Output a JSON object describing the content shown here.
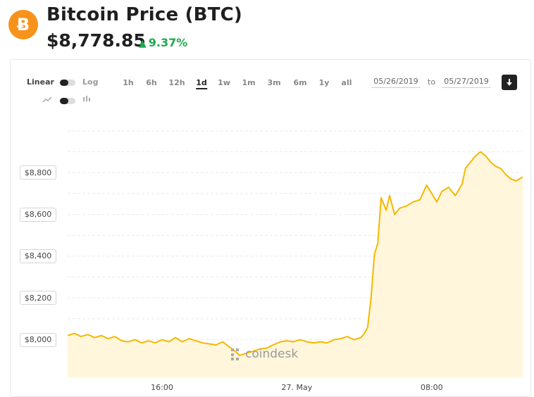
{
  "header": {
    "logo_symbol": "Ƀ",
    "title": "Bitcoin Price (BTC)",
    "price": "$8,778.85",
    "change_arrow": "▲",
    "change": "9.37%",
    "change_color": "#1fa84f",
    "logo_color": "#f7931a"
  },
  "controls": {
    "scale_linear": "Linear",
    "scale_log": "Log",
    "line_icon": "line-chart-icon",
    "candle_icon": "candlestick-icon",
    "ranges": [
      "1h",
      "6h",
      "12h",
      "1d",
      "1w",
      "1m",
      "3m",
      "6m",
      "1y",
      "all"
    ],
    "active_range": "1d",
    "date_from": "05/26/2019",
    "date_to_label": "to",
    "date_to": "05/27/2019",
    "download_icon": "download-icon"
  },
  "watermark": "coindesk",
  "chart_data": {
    "type": "area",
    "line_color": "#f5b800",
    "fill_color": "#fff6dc",
    "grid": true,
    "y_ticks": [
      "$8,000",
      "$8,200",
      "$8,400",
      "$8,600",
      "$8,800"
    ],
    "y_tick_values": [
      8000,
      8200,
      8400,
      8600,
      8800
    ],
    "x_ticks": [
      "16:00",
      "27. May",
      "08:00"
    ],
    "x_tick_hours": [
      16,
      24,
      32
    ],
    "x_start_hour": 10.4,
    "x_end_hour": 37.4,
    "ylim": [
      7820,
      9020
    ],
    "series": [
      {
        "points": [
          [
            10.4,
            8020
          ],
          [
            10.8,
            8030
          ],
          [
            11.2,
            8015
          ],
          [
            11.6,
            8025
          ],
          [
            12.0,
            8010
          ],
          [
            12.4,
            8020
          ],
          [
            12.8,
            8005
          ],
          [
            13.2,
            8015
          ],
          [
            13.6,
            7995
          ],
          [
            14.0,
            7990
          ],
          [
            14.4,
            8000
          ],
          [
            14.8,
            7985
          ],
          [
            15.2,
            7995
          ],
          [
            15.6,
            7985
          ],
          [
            16.0,
            8000
          ],
          [
            16.4,
            7990
          ],
          [
            16.8,
            8010
          ],
          [
            17.2,
            7990
          ],
          [
            17.6,
            8005
          ],
          [
            18.0,
            7995
          ],
          [
            18.4,
            7985
          ],
          [
            18.8,
            7980
          ],
          [
            19.2,
            7975
          ],
          [
            19.6,
            7990
          ],
          [
            20.0,
            7965
          ],
          [
            20.4,
            7940
          ],
          [
            20.6,
            7925
          ],
          [
            21.0,
            7935
          ],
          [
            21.4,
            7945
          ],
          [
            21.8,
            7955
          ],
          [
            22.2,
            7960
          ],
          [
            22.6,
            7975
          ],
          [
            23.0,
            7990
          ],
          [
            23.4,
            7995
          ],
          [
            23.8,
            7990
          ],
          [
            24.2,
            8000
          ],
          [
            24.6,
            7990
          ],
          [
            25.0,
            7985
          ],
          [
            25.4,
            7990
          ],
          [
            25.8,
            7985
          ],
          [
            26.2,
            8000
          ],
          [
            26.6,
            8005
          ],
          [
            27.0,
            8015
          ],
          [
            27.4,
            8000
          ],
          [
            27.8,
            8010
          ],
          [
            28.0,
            8030
          ],
          [
            28.2,
            8060
          ],
          [
            28.4,
            8200
          ],
          [
            28.6,
            8410
          ],
          [
            28.8,
            8460
          ],
          [
            29.0,
            8680
          ],
          [
            29.3,
            8620
          ],
          [
            29.5,
            8690
          ],
          [
            29.8,
            8600
          ],
          [
            30.1,
            8630
          ],
          [
            30.5,
            8640
          ],
          [
            30.9,
            8660
          ],
          [
            31.3,
            8670
          ],
          [
            31.7,
            8740
          ],
          [
            32.0,
            8700
          ],
          [
            32.3,
            8660
          ],
          [
            32.6,
            8710
          ],
          [
            33.0,
            8730
          ],
          [
            33.4,
            8690
          ],
          [
            33.8,
            8745
          ],
          [
            34.0,
            8820
          ],
          [
            34.3,
            8850
          ],
          [
            34.6,
            8880
          ],
          [
            34.9,
            8900
          ],
          [
            35.2,
            8880
          ],
          [
            35.5,
            8850
          ],
          [
            35.8,
            8830
          ],
          [
            36.1,
            8820
          ],
          [
            36.4,
            8790
          ],
          [
            36.7,
            8770
          ],
          [
            37.0,
            8760
          ],
          [
            37.2,
            8770
          ],
          [
            37.4,
            8778.85
          ]
        ]
      }
    ]
  }
}
